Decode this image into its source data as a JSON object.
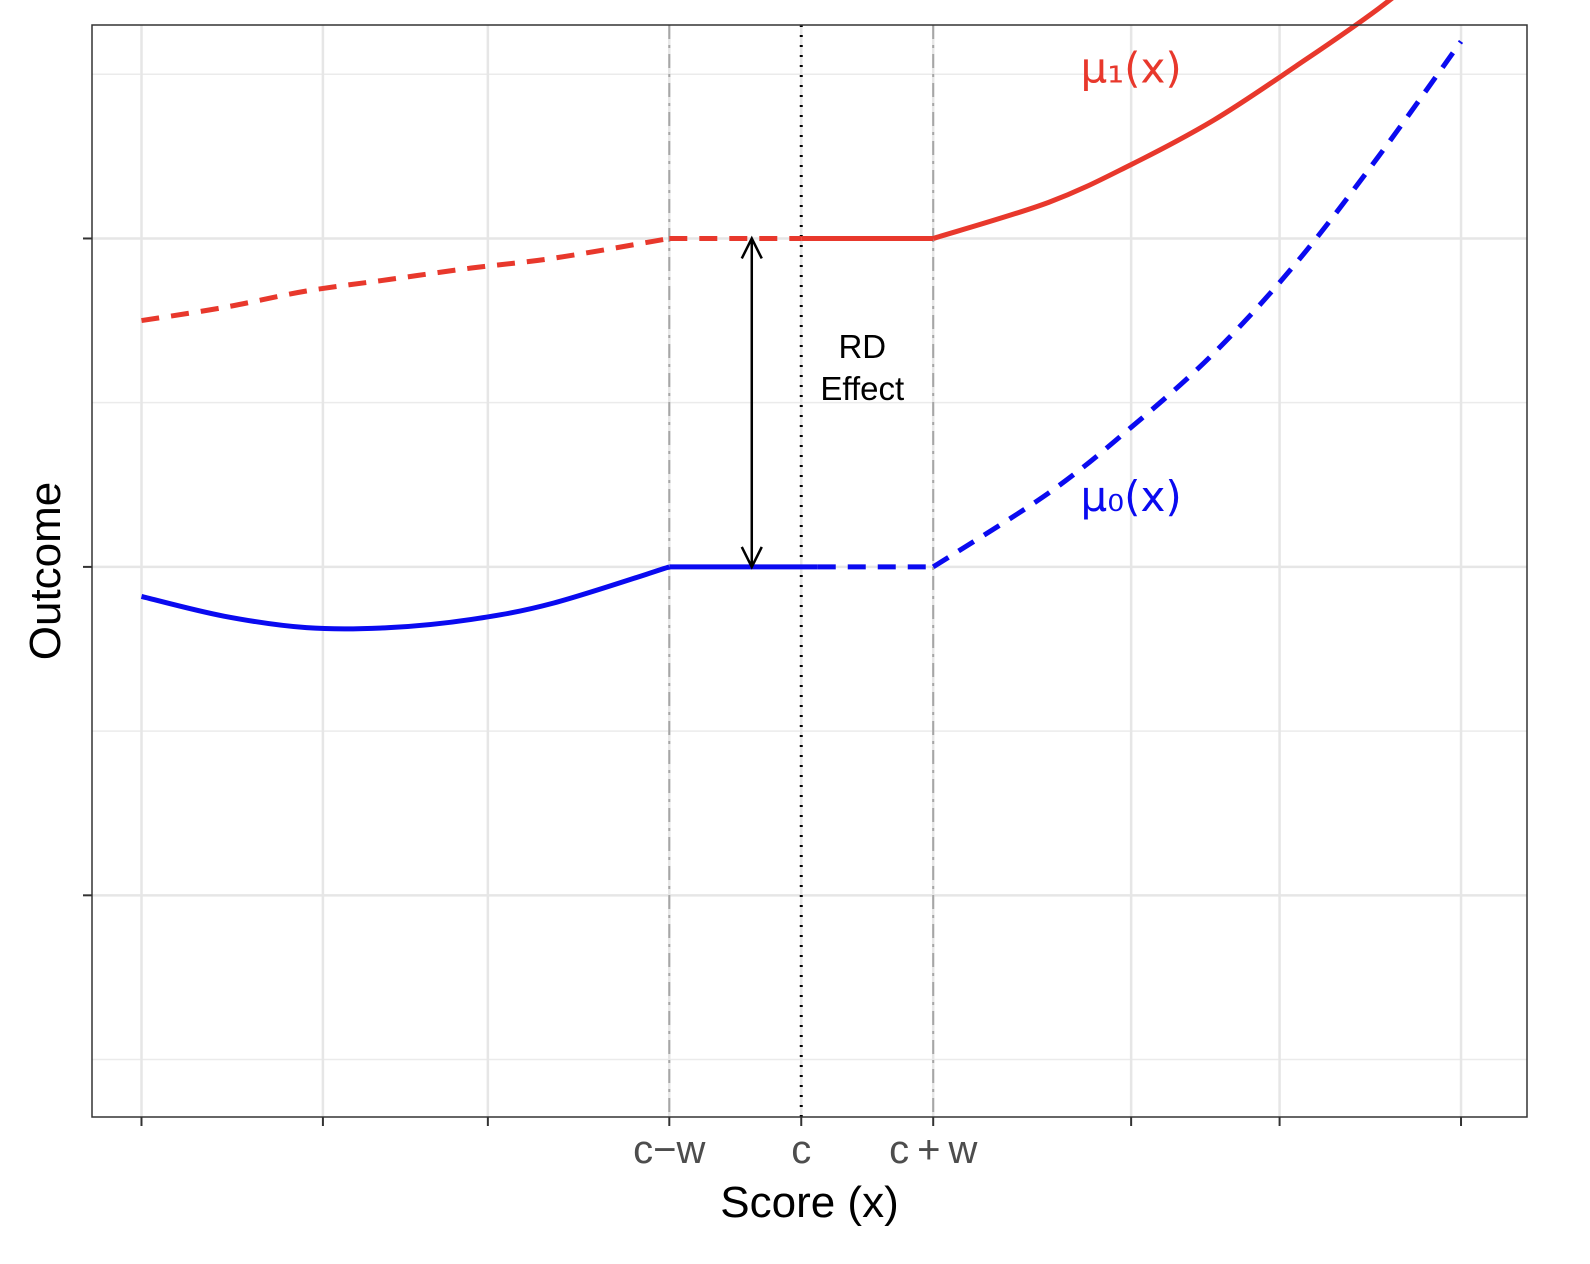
{
  "chart_data": {
    "type": "line",
    "xlabel": "Score (x)",
    "ylabel": "Outcome",
    "xlim": [
      -4.3,
      4.4
    ],
    "ylim": [
      -3.35,
      3.3
    ],
    "x_ticks": [
      -4,
      -2.9,
      -1.9,
      -0.8,
      0,
      0.8,
      2.0,
      2.9,
      4.0
    ],
    "x_tick_labels": [
      "",
      "",
      "",
      "c−w",
      "c",
      "c + w",
      "",
      "",
      ""
    ],
    "y_ticks": [
      -2,
      0,
      2,
      4
    ],
    "y_minor": [
      -3,
      -1,
      1,
      3
    ],
    "y_tick_labels": [
      "",
      "",
      "",
      ""
    ],
    "reference_lines": [
      {
        "x": -0.8,
        "style": "dashdot",
        "color": "#a6a6a6"
      },
      {
        "x": 0,
        "style": "dotted",
        "color": "#000000"
      },
      {
        "x": 0.8,
        "style": "dashdot",
        "color": "#a6a6a6"
      }
    ],
    "series": [
      {
        "name": "μ₁(x)",
        "color": "#e8382c",
        "segments": [
          {
            "style": "dashed",
            "x": [
              -4.0,
              -3.5,
              -3.0,
              -2.5,
              -2.0,
              -1.5,
              -0.8
            ],
            "y": [
              1.5,
              1.58,
              1.68,
              1.75,
              1.82,
              1.88,
              2.0
            ]
          },
          {
            "style": "dashed",
            "x": [
              -0.8,
              0
            ],
            "y": [
              2.0,
              2.0
            ]
          },
          {
            "style": "solid",
            "x": [
              0,
              0.8
            ],
            "y": [
              2.0,
              2.0
            ]
          },
          {
            "style": "solid",
            "x": [
              0.8,
              1.5,
              2.0,
              2.5,
              3.0,
              3.5,
              4.0
            ],
            "y": [
              2.0,
              2.22,
              2.45,
              2.72,
              3.05,
              3.4,
              3.8
            ]
          }
        ]
      },
      {
        "name": "μ₀(x)",
        "color": "#0a0af0",
        "segments": [
          {
            "style": "solid",
            "x": [
              -4.0,
              -3.5,
              -3.0,
              -2.5,
              -2.0,
              -1.5,
              -0.8
            ],
            "y": [
              -0.18,
              -0.3,
              -0.37,
              -0.37,
              -0.32,
              -0.22,
              0.0
            ]
          },
          {
            "style": "solid",
            "x": [
              -0.8,
              0.1
            ],
            "y": [
              0.0,
              0.0
            ]
          },
          {
            "style": "dashed",
            "x": [
              0.1,
              0.8
            ],
            "y": [
              0.0,
              0.0
            ]
          },
          {
            "style": "dashed",
            "x": [
              0.8,
              1.5,
              2.0,
              2.5,
              3.0,
              3.5,
              4.0
            ],
            "y": [
              0.0,
              0.45,
              0.85,
              1.3,
              1.85,
              2.5,
              3.2
            ]
          }
        ]
      }
    ],
    "annotations": {
      "effect_arrow": {
        "x": -0.3,
        "y_from": 0,
        "y_to": 2
      },
      "effect_label_line1": "RD",
      "effect_label_line2": "Effect",
      "effect_label_pos": {
        "x": 0.37,
        "y": 1.03
      },
      "mu1_label_pos": {
        "x": 2.0,
        "y": 2.95
      },
      "mu0_label_pos": {
        "x": 2.0,
        "y": 0.34
      }
    },
    "grid": true,
    "legend": "none"
  }
}
